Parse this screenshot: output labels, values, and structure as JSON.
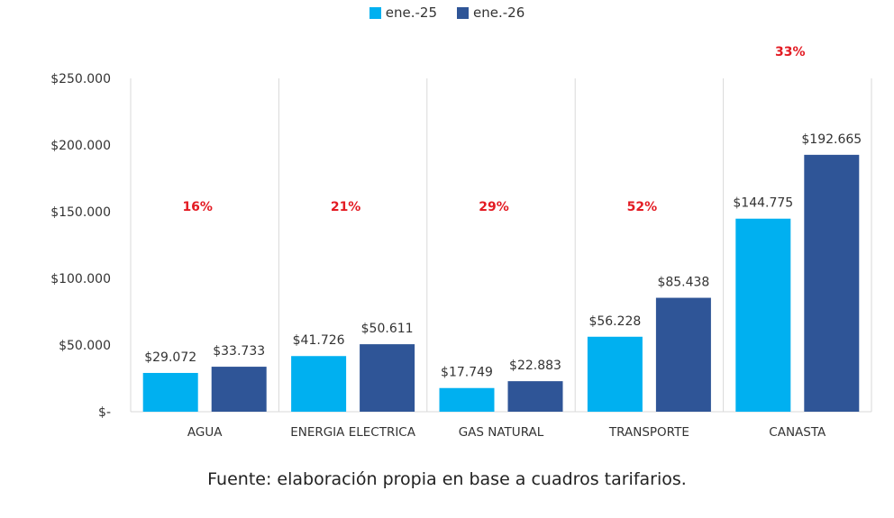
{
  "chart_data": {
    "type": "bar",
    "title": "",
    "xlabel": "",
    "ylabel": "",
    "categories": [
      "AGUA",
      "ENERGIA ELECTRICA",
      "GAS NATURAL",
      "TRANSPORTE",
      "CANASTA"
    ],
    "series": [
      {
        "name": "ene.-25",
        "color": "#00b0f0",
        "values": [
          29072,
          41726,
          17749,
          56228,
          144775
        ],
        "labels": [
          "$29.072",
          "$41.726",
          "$17.749",
          "$56.228",
          "$144.775"
        ]
      },
      {
        "name": "ene.-26",
        "color": "#2f5597",
        "values": [
          33733,
          50611,
          22883,
          85438,
          192665
        ],
        "labels": [
          "$33.733",
          "$50.611",
          "$22.883",
          "$85.438",
          "$192.665"
        ]
      }
    ],
    "increase_labels": [
      "16%",
      "21%",
      "29%",
      "52%",
      "33%"
    ],
    "increase_label_color": "#e31b23",
    "ylim": [
      0,
      250000
    ],
    "yticks": [
      0,
      50000,
      100000,
      150000,
      200000,
      250000
    ],
    "ytick_labels": [
      "$-",
      "$50.000",
      "$100.000",
      "$150.000",
      "$200.000",
      "$250.000"
    ],
    "grid": false,
    "category_separators": true,
    "legend_position": "top-center"
  },
  "footer": {
    "source_text": "Fuente: elaboración propia en base a cuadros tarifarios."
  }
}
